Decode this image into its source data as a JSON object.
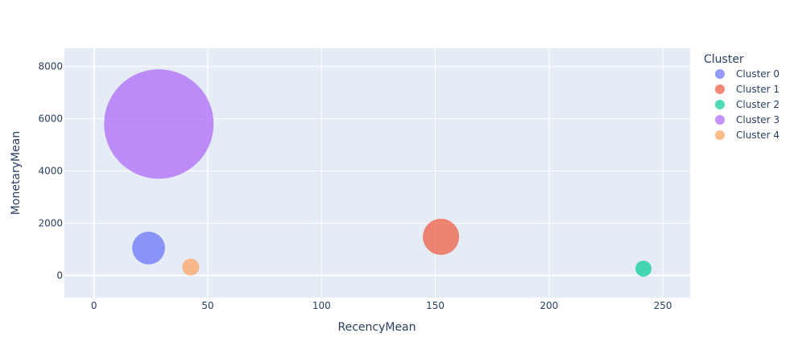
{
  "chart_data": {
    "type": "scatter",
    "variant": "bubble",
    "xlabel": "RecencyMean",
    "ylabel": "MonetaryMean",
    "xlim": [
      -13,
      262
    ],
    "ylim": [
      -850,
      8700
    ],
    "x_ticks": [
      0,
      50,
      100,
      150,
      200,
      250
    ],
    "y_ticks": [
      0,
      2000,
      4000,
      6000,
      8000
    ],
    "grid": true,
    "background": "#e5ecf6",
    "legend": {
      "title": "Cluster",
      "placement": "right"
    },
    "series": [
      {
        "name": "Cluster 0",
        "x": 24,
        "y": 1050,
        "size": 2.08,
        "color": "#636efa"
      },
      {
        "name": "Cluster 1",
        "x": 152.5,
        "y": 1480,
        "size": 2.54,
        "color": "#ef553b"
      },
      {
        "name": "Cluster 2",
        "x": 241.5,
        "y": 260,
        "size": 0.5,
        "color": "#00cc96"
      },
      {
        "name": "Cluster 3",
        "x": 28.5,
        "y": 5800,
        "size": 23.2,
        "color": "#ab63fa"
      },
      {
        "name": "Cluster 4",
        "x": 42.5,
        "y": 320,
        "size": 0.56,
        "color": "#ffa15a"
      }
    ]
  }
}
